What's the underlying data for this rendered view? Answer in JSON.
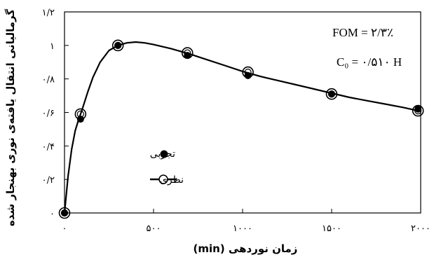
{
  "chart_data": {
    "type": "line",
    "xlabel": "زمان نوردهی (min)",
    "ylabel": "گرمالیانی انتقال یافته‌ی نوری بهنجار شده",
    "xlim": [
      0,
      2000
    ],
    "ylim": [
      0,
      1.2
    ],
    "x_ticks": [
      0,
      500,
      1000,
      1500,
      2000
    ],
    "x_tick_labels": [
      "۰",
      "۵۰۰",
      "۱۰۰۰",
      "۱۵۰۰",
      "۲۰۰۰"
    ],
    "y_ticks": [
      0,
      0.2,
      0.4,
      0.6,
      0.8,
      1,
      1.2
    ],
    "y_tick_labels": [
      "۰",
      "۰/۲",
      "۰/۴",
      "۰/۶",
      "۰/۸",
      "۱",
      "۱/۲"
    ],
    "grid": false,
    "legend_position": "left-center",
    "annotations": [
      "FOM = ۲/۳٪",
      "C₀ = ۰/۵۱۰ H"
    ],
    "series": [
      {
        "name": "تجربی",
        "style": "filled-markers",
        "x": [
          0,
          90,
          300,
          690,
          1030,
          1500,
          1985
        ],
        "y": [
          0.0,
          0.56,
          1.0,
          0.94,
          0.82,
          0.71,
          0.62
        ]
      },
      {
        "name": "نظری",
        "style": "line-open-markers",
        "x": [
          0,
          90,
          300,
          690,
          1030,
          1500,
          1985
        ],
        "y": [
          0.0,
          0.59,
          1.0,
          0.955,
          0.84,
          0.71,
          0.61
        ],
        "curve_x": [
          0,
          20,
          40,
          60,
          80,
          100,
          130,
          160,
          200,
          250,
          300,
          350,
          400,
          450,
          500,
          600,
          700,
          800,
          900,
          1000,
          1100,
          1200,
          1300,
          1400,
          1500,
          1600,
          1700,
          1800,
          1900,
          1985
        ],
        "curve_y": [
          0.0,
          0.22,
          0.38,
          0.49,
          0.56,
          0.62,
          0.72,
          0.81,
          0.9,
          0.97,
          1.0,
          1.015,
          1.02,
          1.015,
          1.005,
          0.98,
          0.95,
          0.915,
          0.88,
          0.845,
          0.815,
          0.79,
          0.765,
          0.74,
          0.715,
          0.69,
          0.67,
          0.65,
          0.63,
          0.61
        ]
      }
    ]
  },
  "colors": {
    "line": "#000000",
    "filled_marker": "#000000",
    "open_marker_fill": "#ffffff"
  }
}
